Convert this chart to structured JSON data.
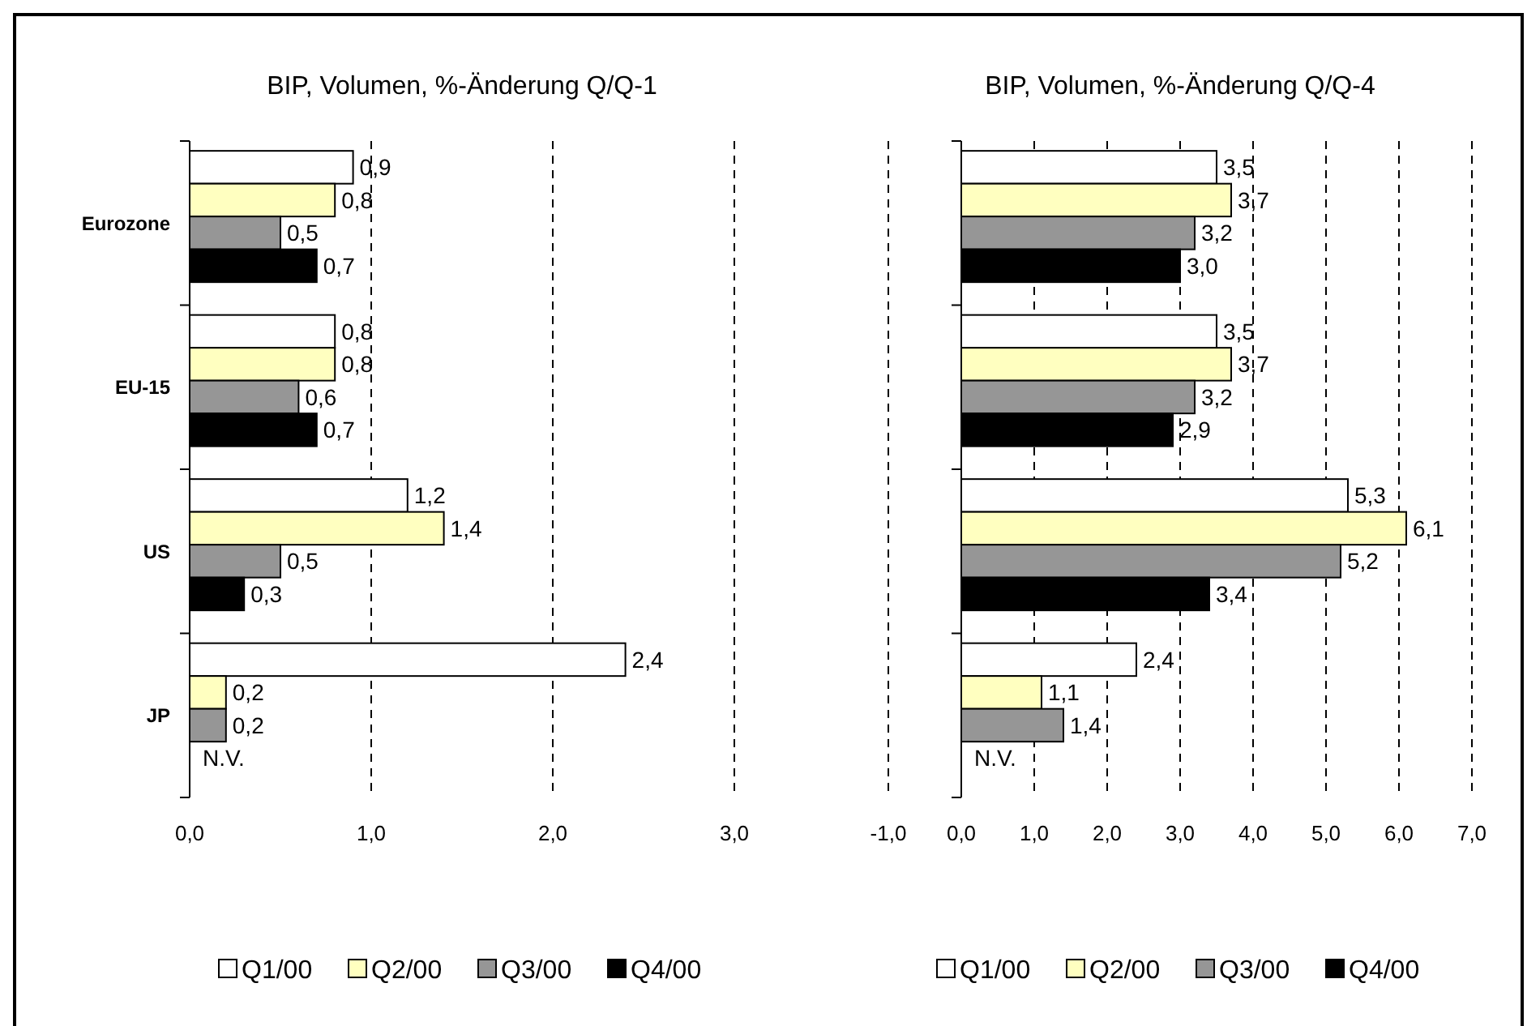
{
  "chart_data": [
    {
      "type": "bar",
      "orientation": "horizontal",
      "title": "BIP, Volumen, %-Änderung Q/Q-1",
      "categories": [
        "Eurozone",
        "EU-15",
        "US",
        "JP"
      ],
      "series": [
        {
          "name": "Q1/00",
          "color": "#ffffff",
          "values": [
            0.9,
            0.8,
            1.2,
            2.4
          ],
          "value_labels": [
            "0,9",
            "0,8",
            "1,2",
            "2,4"
          ]
        },
        {
          "name": "Q2/00",
          "color": "#ffffc0",
          "values": [
            0.8,
            0.8,
            1.4,
            0.2
          ],
          "value_labels": [
            "0,8",
            "0,8",
            "1,4",
            "0,2"
          ]
        },
        {
          "name": "Q3/00",
          "color": "#969696",
          "values": [
            0.5,
            0.6,
            0.5,
            0.2
          ],
          "value_labels": [
            "0,5",
            "0,6",
            "0,5",
            "0,2"
          ]
        },
        {
          "name": "Q4/00",
          "color": "#000000",
          "values": [
            0.7,
            0.7,
            0.3,
            null
          ],
          "value_labels": [
            "0,7",
            "0,7",
            "0,3",
            null
          ]
        }
      ],
      "xlim": [
        0,
        3
      ],
      "xticks": [
        {
          "value": 0,
          "label": "0,0"
        },
        {
          "value": 1,
          "label": "1,0"
        },
        {
          "value": 2,
          "label": "2,0"
        },
        {
          "value": 3,
          "label": "3,0"
        }
      ],
      "grid": "x",
      "legend": "bottom",
      "annotations": [
        "N.V."
      ]
    },
    {
      "type": "bar",
      "orientation": "horizontal",
      "title": "BIP, Volumen, %-Änderung Q/Q-4",
      "categories": [
        null,
        null,
        null,
        null
      ],
      "series": [
        {
          "name": "Q1/00",
          "color": "#ffffff",
          "values": [
            3.5,
            3.5,
            5.3,
            2.4
          ],
          "value_labels": [
            "3,5",
            "3,5",
            "5,3",
            "2,4"
          ]
        },
        {
          "name": "Q2/00",
          "color": "#ffffc0",
          "values": [
            3.7,
            3.7,
            6.1,
            1.1
          ],
          "value_labels": [
            "3,7",
            "3,7",
            "6,1",
            "1,1"
          ]
        },
        {
          "name": "Q3/00",
          "color": "#969696",
          "values": [
            3.2,
            3.2,
            5.2,
            1.4
          ],
          "value_labels": [
            "3,2",
            "3,2",
            "5,2",
            "1,4"
          ]
        },
        {
          "name": "Q4/00",
          "color": "#000000",
          "values": [
            3.0,
            2.9,
            3.4,
            null
          ],
          "value_labels": [
            "3,0",
            "2,9",
            "3,4",
            null
          ]
        }
      ],
      "xlim": [
        -1,
        7
      ],
      "xticks": [
        {
          "value": -1,
          "label": "-1,0"
        },
        {
          "value": 0,
          "label": "0,0"
        },
        {
          "value": 1,
          "label": "1,0"
        },
        {
          "value": 2,
          "label": "2,0"
        },
        {
          "value": 3,
          "label": "3,0"
        },
        {
          "value": 4,
          "label": "4,0"
        },
        {
          "value": 5,
          "label": "5,0"
        },
        {
          "value": 6,
          "label": "6,0"
        },
        {
          "value": 7,
          "label": "7,0"
        }
      ],
      "grid": "x",
      "legend": "bottom",
      "annotations": [
        "N.V."
      ]
    }
  ]
}
